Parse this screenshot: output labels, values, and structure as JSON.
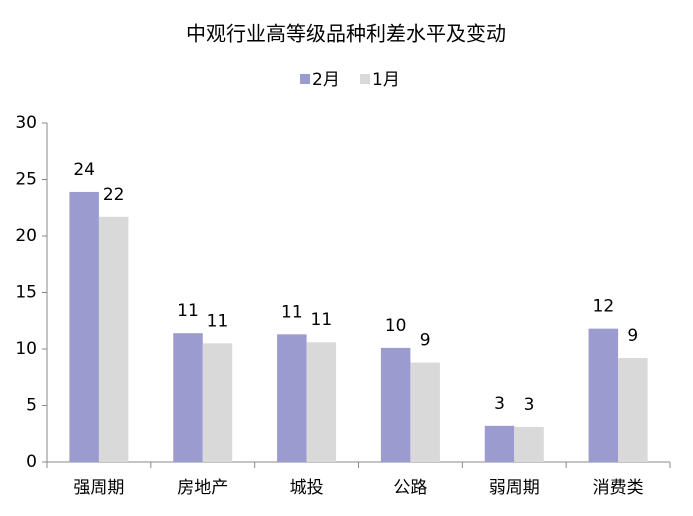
{
  "chart_data": {
    "type": "bar",
    "title": "中观行业高等级品种利差水平及变动",
    "categories": [
      "强周期",
      "房地产",
      "城投",
      "公路",
      "弱周期",
      "消费类"
    ],
    "series": [
      {
        "name": "2月",
        "color": "#9b9bd0",
        "values": [
          23.9,
          11.4,
          11.3,
          10.1,
          3.2,
          11.8
        ],
        "value_labels": [
          "24",
          "11",
          "11",
          "10",
          "3",
          "12"
        ]
      },
      {
        "name": "1月",
        "color": "#d9d9d9",
        "values": [
          21.7,
          10.5,
          10.6,
          8.8,
          3.1,
          9.2
        ],
        "value_labels": [
          "22",
          "11",
          "11",
          "9",
          "3",
          "9"
        ]
      }
    ],
    "ylim": [
      0,
      30
    ],
    "yticks": [
      0,
      5,
      10,
      15,
      20,
      25,
      30
    ],
    "grid": false,
    "legend": "top"
  }
}
